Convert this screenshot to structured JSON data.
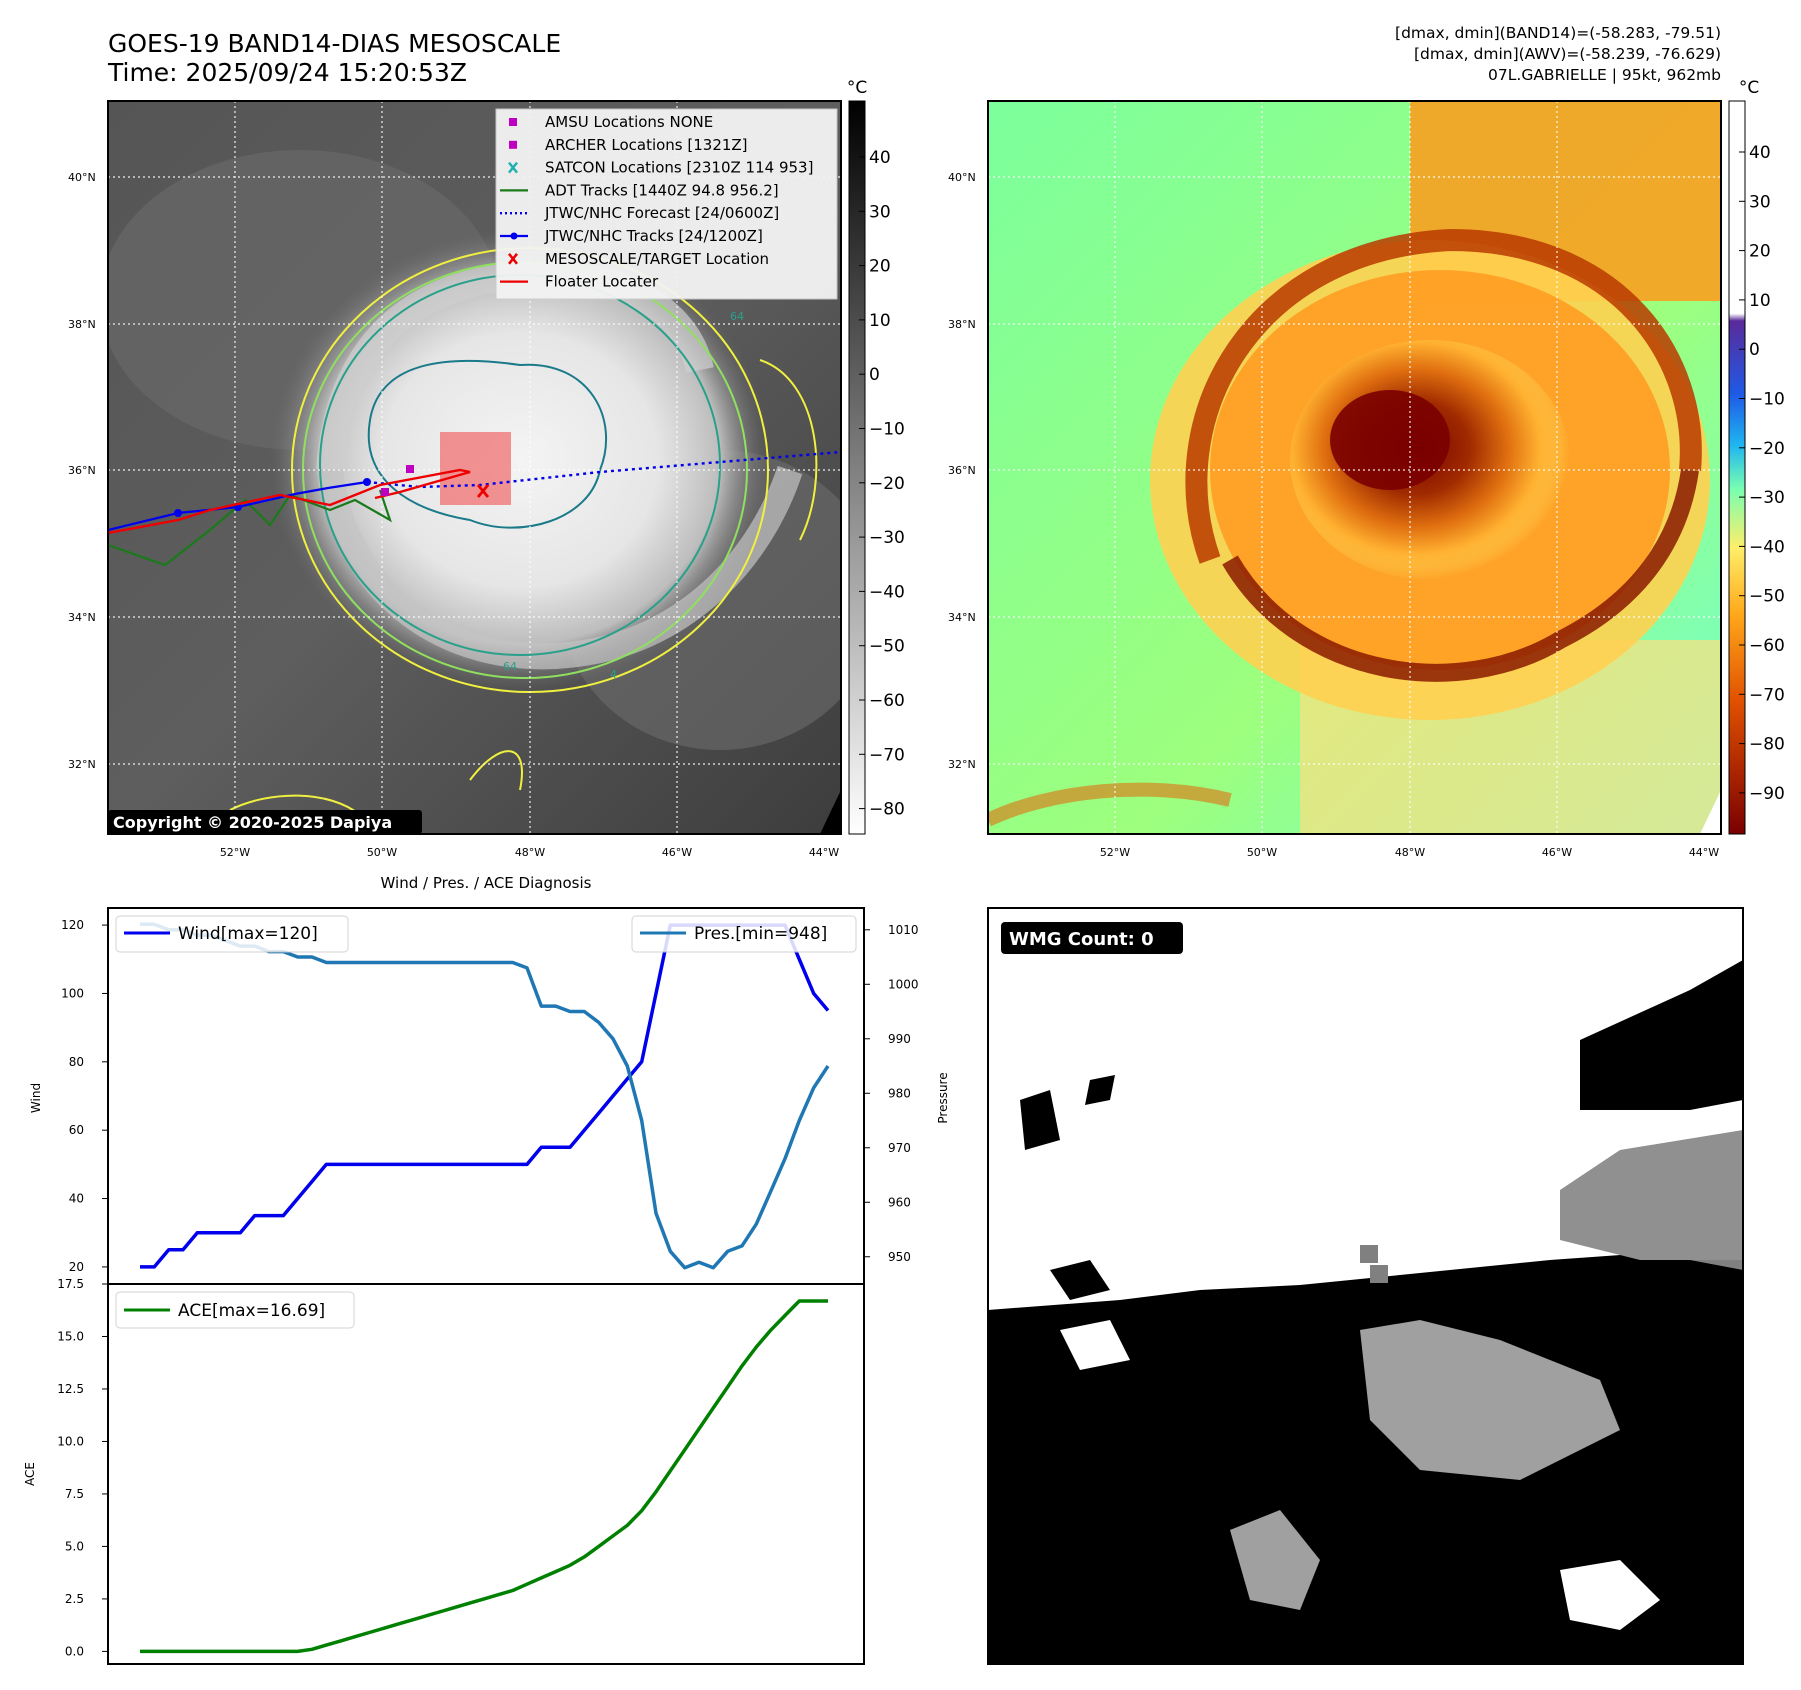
{
  "header": {
    "title_line1": "GOES-19 BAND14-DIAS MESOSCALE",
    "title_line2": "Time: 2025/09/24 15:20:53Z",
    "info_line1": "[dmax, dmin](BAND14)=(-58.283, -79.51)",
    "info_line2": "[dmax, dmin](AWV)=(-58.239, -76.629)",
    "info_line3": "07L.GABRIELLE | 95kt, 962mb"
  },
  "map": {
    "lat_labels": [
      "40°N",
      "38°N",
      "36°N",
      "34°N",
      "32°N"
    ],
    "lon_labels": [
      "52°W",
      "50°W",
      "48°W",
      "46°W",
      "44°W"
    ],
    "copyright": "Copyright © 2020-2025 Dapiya",
    "contour_labels": [
      "64",
      "64",
      "4"
    ],
    "legend": [
      {
        "label": "AMSU Locations NONE",
        "color": "#c000c0",
        "kind": "square"
      },
      {
        "label": "ARCHER Locations [1321Z]",
        "color": "#c000c0",
        "kind": "square"
      },
      {
        "label": "SATCON Locations [2310Z 114 953]",
        "color": "#20b0b0",
        "kind": "x"
      },
      {
        "label": "ADT Tracks [1440Z 94.8 956.2]",
        "color": "#1a7a1a",
        "kind": "line"
      },
      {
        "label": "JTWC/NHC Forecast [24/0600Z]",
        "color": "#0000ee",
        "kind": "dotted"
      },
      {
        "label": "JTWC/NHC Tracks [24/1200Z]",
        "color": "#0000ee",
        "kind": "line-dot"
      },
      {
        "label": "MESOSCALE/TARGET Location",
        "color": "#ee0000",
        "kind": "x"
      },
      {
        "label": "Floater Locater",
        "color": "#ee0000",
        "kind": "line"
      }
    ]
  },
  "colorbar_ir": {
    "unit": "°C",
    "ticks": [
      "40",
      "30",
      "20",
      "10",
      "0",
      "−10",
      "−20",
      "−30",
      "−40",
      "−50",
      "−60",
      "−70",
      "−80"
    ]
  },
  "colorbar_awv": {
    "unit": "°C",
    "ticks": [
      "40",
      "30",
      "20",
      "10",
      "0",
      "−10",
      "−20",
      "−30",
      "−40",
      "−50",
      "−60",
      "−70",
      "−80",
      "−90"
    ]
  },
  "wmg_panel": {
    "badge": "WMG Count: 0"
  },
  "chart_data": [
    {
      "type": "line",
      "title": "Wind / Pres. / ACE Diagnosis",
      "ylabel": "Wind",
      "ylabel_right": "Pressure",
      "ylim": [
        15,
        125
      ],
      "ylim_right": [
        945,
        1014
      ],
      "yticks": [
        20,
        40,
        60,
        80,
        100,
        120
      ],
      "yticks_right": [
        950,
        960,
        970,
        980,
        990,
        1000,
        1010
      ],
      "x": [
        0,
        1,
        2,
        3,
        4,
        5,
        6,
        7,
        8,
        9,
        10,
        11,
        12,
        13,
        14,
        15,
        16,
        17,
        18,
        19,
        20,
        21,
        22,
        23,
        24,
        25,
        26,
        27,
        28,
        29,
        30,
        31,
        32,
        33,
        34,
        35,
        36,
        37,
        38,
        39,
        40,
        41,
        42,
        43,
        44,
        45,
        46,
        47,
        48
      ],
      "grid": false,
      "series": [
        {
          "name": "Wind[max=120]",
          "axis": "left",
          "color": "#0000ee",
          "values": [
            20,
            20,
            25,
            25,
            30,
            30,
            30,
            30,
            35,
            35,
            35,
            40,
            45,
            50,
            50,
            50,
            50,
            50,
            50,
            50,
            50,
            50,
            50,
            50,
            50,
            50,
            50,
            50,
            55,
            55,
            55,
            60,
            65,
            70,
            75,
            80,
            100,
            120,
            120,
            120,
            120,
            120,
            120,
            120,
            120,
            120,
            110,
            100,
            95
          ]
        },
        {
          "name": "Pres.[min=948]",
          "axis": "right",
          "color": "#1f77b4",
          "values": [
            1011,
            1011,
            1010,
            1010,
            1009,
            1009,
            1008,
            1007,
            1007,
            1006,
            1006,
            1005,
            1005,
            1004,
            1004,
            1004,
            1004,
            1004,
            1004,
            1004,
            1004,
            1004,
            1004,
            1004,
            1004,
            1004,
            1004,
            1003,
            996,
            996,
            995,
            995,
            993,
            990,
            985,
            975,
            958,
            951,
            948,
            949,
            948,
            951,
            952,
            956,
            962,
            968,
            975,
            981,
            985
          ]
        }
      ]
    },
    {
      "type": "line",
      "ylabel": "ACE",
      "ylim": [
        -0.6,
        17.5
      ],
      "yticks": [
        0.0,
        2.5,
        5.0,
        7.5,
        10.0,
        12.5,
        15.0,
        17.5
      ],
      "x": [
        0,
        1,
        2,
        3,
        4,
        5,
        6,
        7,
        8,
        9,
        10,
        11,
        12,
        13,
        14,
        15,
        16,
        17,
        18,
        19,
        20,
        21,
        22,
        23,
        24,
        25,
        26,
        27,
        28,
        29,
        30,
        31,
        32,
        33,
        34,
        35,
        36,
        37,
        38,
        39,
        40,
        41,
        42,
        43,
        44,
        45,
        46,
        47,
        48
      ],
      "grid": false,
      "series": [
        {
          "name": "ACE[max=16.69]",
          "axis": "left",
          "color": "#008000",
          "values": [
            0,
            0,
            0,
            0,
            0,
            0,
            0,
            0,
            0,
            0,
            0,
            0,
            0.1,
            0.3,
            0.5,
            0.7,
            0.9,
            1.1,
            1.3,
            1.5,
            1.7,
            1.9,
            2.1,
            2.3,
            2.5,
            2.7,
            2.9,
            3.2,
            3.5,
            3.8,
            4.1,
            4.5,
            5.0,
            5.5,
            6.0,
            6.7,
            7.6,
            8.6,
            9.6,
            10.6,
            11.6,
            12.6,
            13.6,
            14.5,
            15.3,
            16.0,
            16.69,
            16.69,
            16.69
          ]
        }
      ]
    }
  ]
}
